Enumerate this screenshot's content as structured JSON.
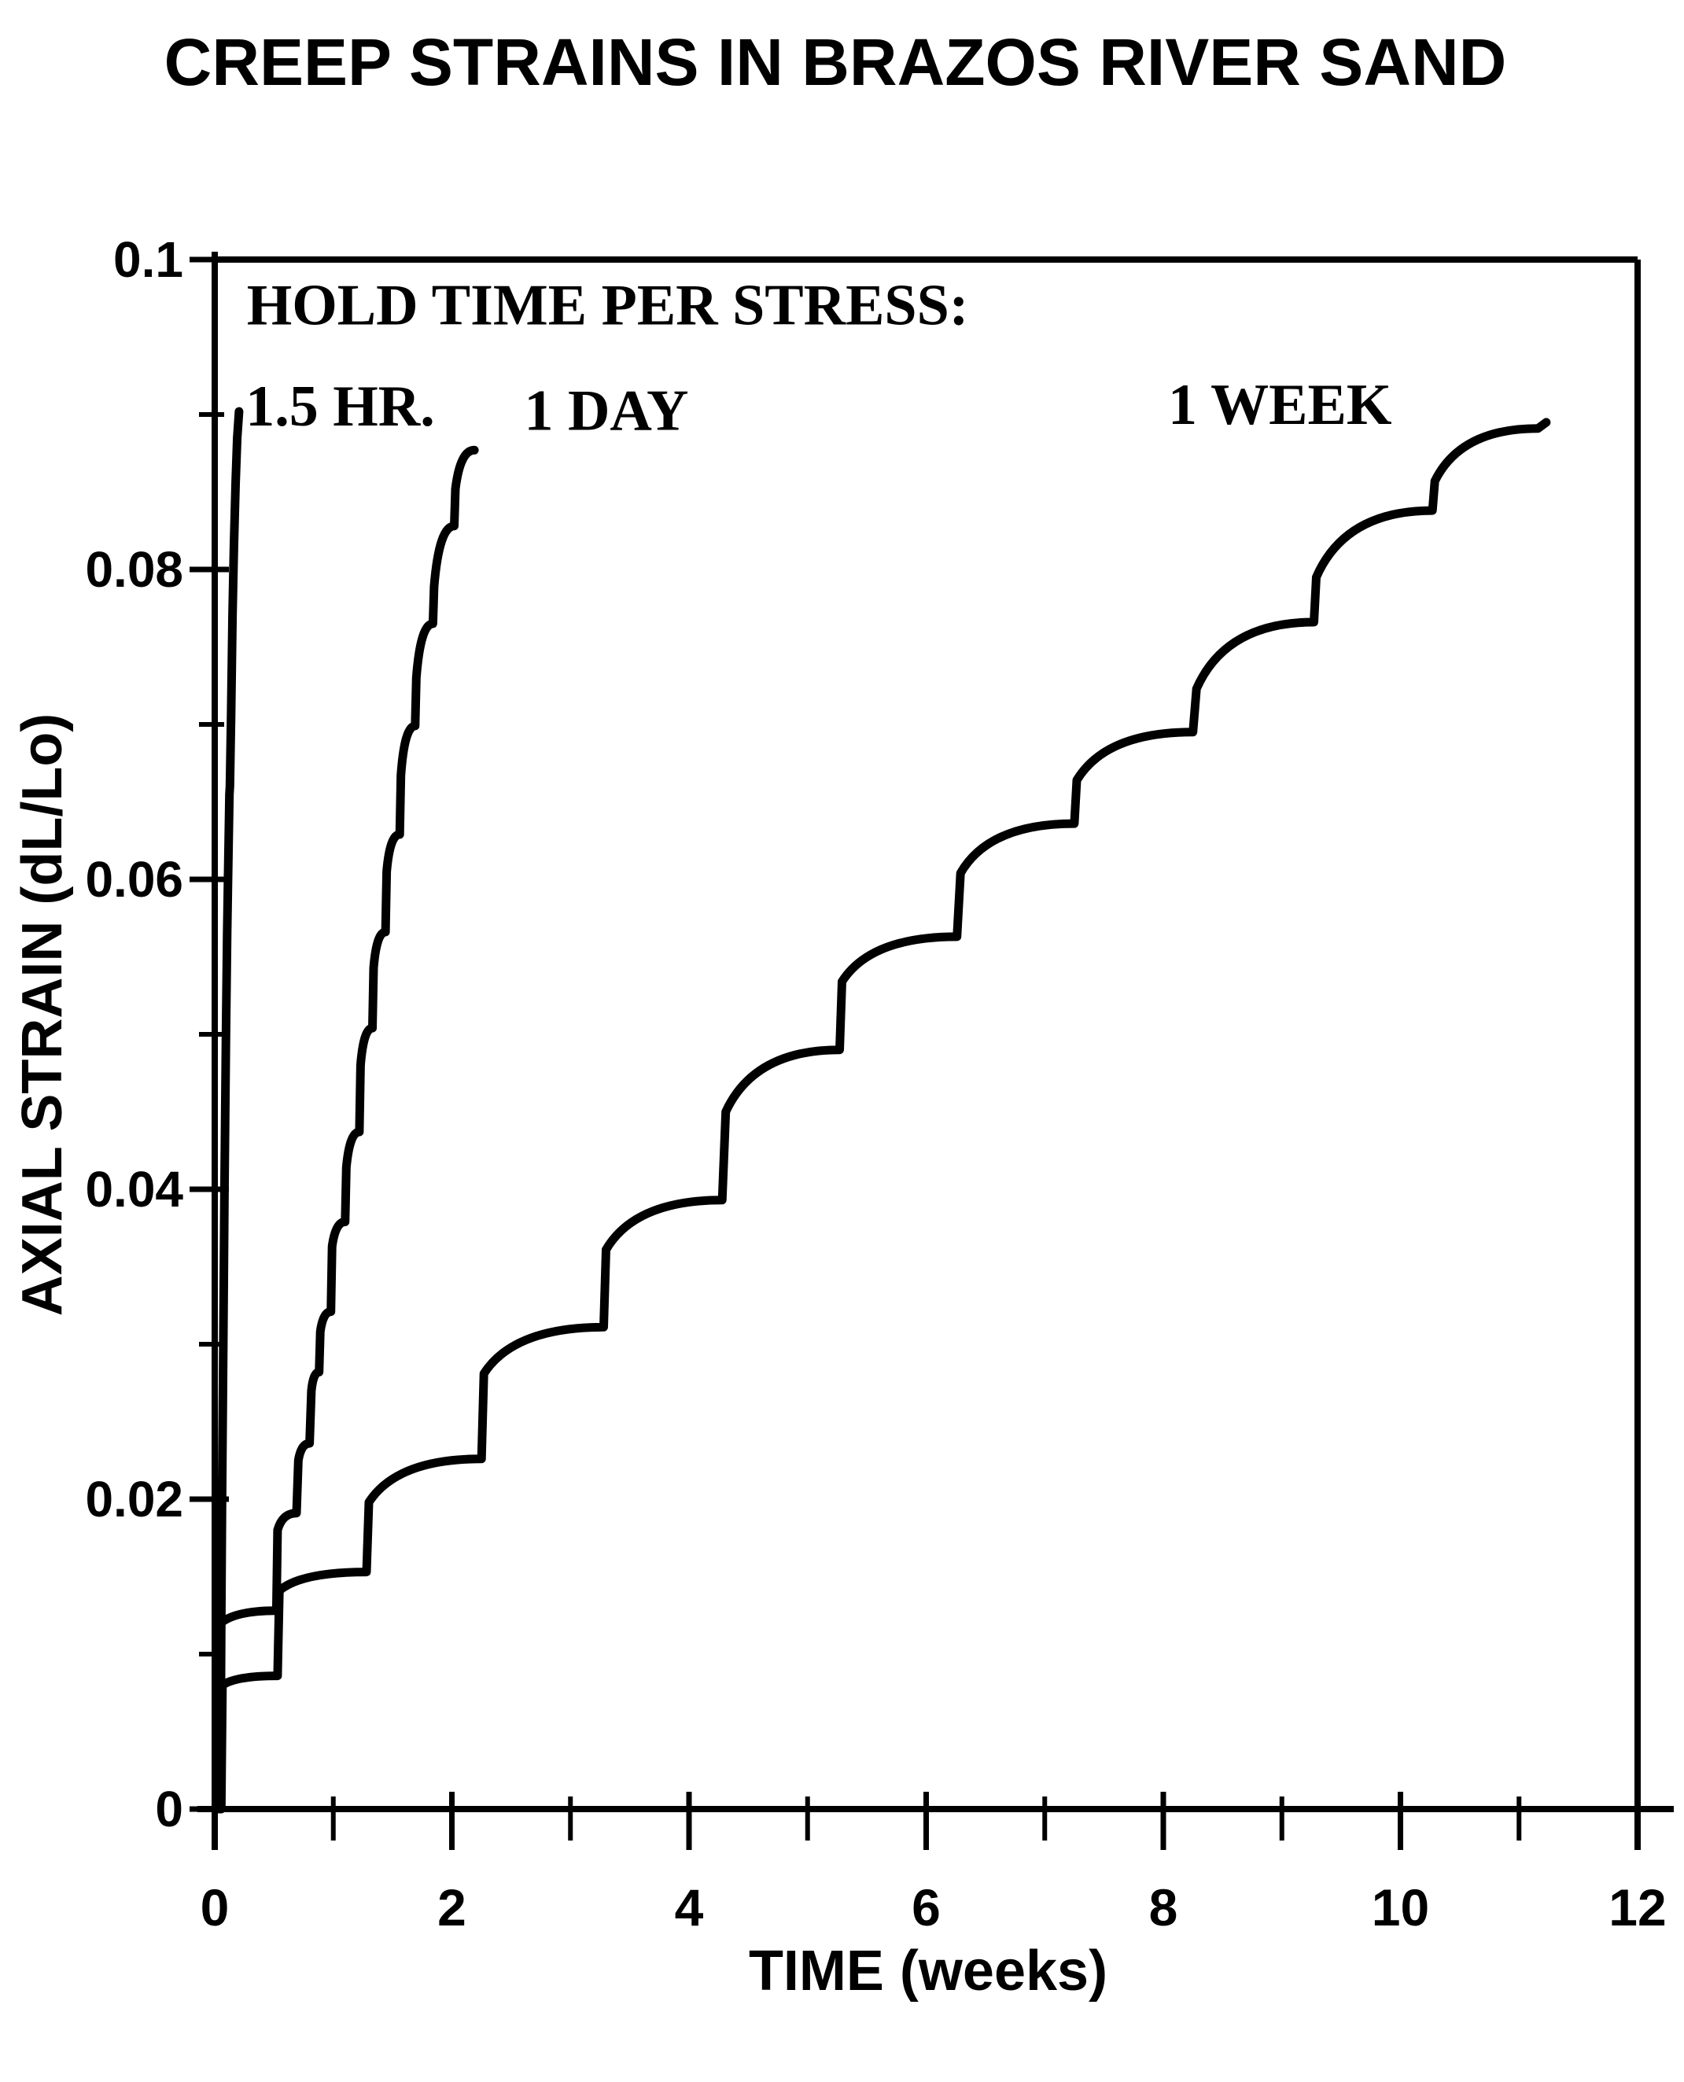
{
  "title": "CREEP STRAINS IN BRAZOS RIVER SAND",
  "colors": {
    "ink": "#000000",
    "paper": "#ffffff"
  },
  "chart_data": {
    "type": "line",
    "title": "CREEP STRAINS IN BRAZOS RIVER SAND",
    "xlabel": "TIME (weeks)",
    "ylabel": "AXIAL STRAIN (dL/Lo)",
    "xlim": [
      0,
      12
    ],
    "ylim": [
      0,
      0.1
    ],
    "grid": false,
    "legend_position": "inside-top-annotations",
    "x_major_ticks": [
      0,
      2,
      4,
      6,
      8,
      10,
      12
    ],
    "x_minor_ticks": [
      1,
      3,
      5,
      7,
      9,
      11
    ],
    "y_major_ticks": [
      {
        "v": 0,
        "label": "0"
      },
      {
        "v": 0.02,
        "label": "0.02"
      },
      {
        "v": 0.04,
        "label": "0.04"
      },
      {
        "v": 0.06,
        "label": "0.06"
      },
      {
        "v": 0.08,
        "label": "0.08"
      },
      {
        "v": 0.1,
        "label": "0.1"
      }
    ],
    "y_minor_ticks": [
      0.01,
      0.03,
      0.05,
      0.07,
      0.09
    ],
    "annotations": [
      {
        "id": "legend-header",
        "text": "HOLD TIME PER STRESS:",
        "t": 0.27,
        "s": 0.0958
      },
      {
        "id": "series-label-15hr",
        "text": "1.5 HR.",
        "t": 0.26,
        "s": 0.0893
      },
      {
        "id": "series-label-1day",
        "text": "1 DAY",
        "t": 2.61,
        "s": 0.089
      },
      {
        "id": "series-label-1week",
        "text": "1 WEEK",
        "t": 8.04,
        "s": 0.0894
      }
    ],
    "series": [
      {
        "name": "1.5 HR.",
        "hold_time": "1.5 hours per stress increment",
        "points": [
          [
            0.045,
            0,
            0
          ],
          [
            0.05,
            0.004,
            0
          ],
          [
            0.055,
            0.012,
            0
          ],
          [
            0.062,
            0.02,
            0
          ],
          [
            0.072,
            0.03,
            0
          ],
          [
            0.082,
            0.04,
            0
          ],
          [
            0.095,
            0.05,
            0
          ],
          [
            0.105,
            0.0565,
            0
          ],
          [
            0.112,
            0.06,
            0
          ],
          [
            0.124,
            0.0655,
            0
          ],
          [
            0.128,
            0.066,
            0
          ],
          [
            0.138,
            0.0705,
            0
          ],
          [
            0.15,
            0.077,
            0
          ],
          [
            0.162,
            0.0815,
            0
          ],
          [
            0.176,
            0.0855,
            0
          ],
          [
            0.19,
            0.0885,
            0
          ],
          [
            0.205,
            0.0902,
            0
          ]
        ]
      },
      {
        "name": "1 DAY",
        "hold_time": "1 day per stress increment",
        "points": [
          [
            0.025,
            0,
            0
          ],
          [
            0.035,
            0.0119,
            0
          ],
          [
            0.52,
            0.0128,
            1
          ],
          [
            0.53,
            0.018,
            0
          ],
          [
            0.69,
            0.0191,
            1
          ],
          [
            0.705,
            0.0225,
            0
          ],
          [
            0.8,
            0.0236,
            1
          ],
          [
            0.815,
            0.027,
            0
          ],
          [
            0.88,
            0.0282,
            1
          ],
          [
            0.89,
            0.0308,
            0
          ],
          [
            0.98,
            0.0321,
            1
          ],
          [
            0.99,
            0.0363,
            0
          ],
          [
            1.1,
            0.0379,
            1
          ],
          [
            1.11,
            0.0414,
            0
          ],
          [
            1.22,
            0.0437,
            1
          ],
          [
            1.23,
            0.048,
            0
          ],
          [
            1.33,
            0.0504,
            1
          ],
          [
            1.34,
            0.0543,
            0
          ],
          [
            1.44,
            0.0566,
            1
          ],
          [
            1.45,
            0.0605,
            0
          ],
          [
            1.56,
            0.0629,
            1
          ],
          [
            1.57,
            0.0667,
            0
          ],
          [
            1.69,
            0.0699,
            1
          ],
          [
            1.7,
            0.073,
            0
          ],
          [
            1.84,
            0.0765,
            1
          ],
          [
            1.85,
            0.0789,
            0
          ],
          [
            2.02,
            0.0828,
            1
          ],
          [
            2.03,
            0.0852,
            0
          ],
          [
            2.19,
            0.0877,
            1
          ]
        ]
      },
      {
        "name": "1 WEEK",
        "hold_time": "1 week per stress increment",
        "points": [
          [
            0.055,
            0,
            0
          ],
          [
            0.065,
            0.008,
            0
          ],
          [
            0.53,
            0.0086,
            1
          ],
          [
            0.545,
            0.0141,
            0
          ],
          [
            1.28,
            0.0153,
            1
          ],
          [
            1.3,
            0.0198,
            0
          ],
          [
            2.25,
            0.0226,
            1
          ],
          [
            2.27,
            0.0281,
            0
          ],
          [
            3.28,
            0.0311,
            1
          ],
          [
            3.3,
            0.0361,
            0
          ],
          [
            4.28,
            0.0393,
            1
          ],
          [
            4.31,
            0.045,
            0
          ],
          [
            5.27,
            0.049,
            1
          ],
          [
            5.29,
            0.0534,
            0
          ],
          [
            6.26,
            0.0563,
            1
          ],
          [
            6.29,
            0.0604,
            0
          ],
          [
            7.25,
            0.0636,
            1
          ],
          [
            7.27,
            0.0664,
            0
          ],
          [
            8.25,
            0.0695,
            1
          ],
          [
            8.28,
            0.0723,
            0
          ],
          [
            9.27,
            0.0766,
            1
          ],
          [
            9.29,
            0.0795,
            0
          ],
          [
            10.27,
            0.0838,
            1
          ],
          [
            10.29,
            0.0857,
            0
          ],
          [
            11.16,
            0.0891,
            1
          ],
          [
            11.23,
            0.0895,
            0
          ]
        ]
      }
    ]
  }
}
